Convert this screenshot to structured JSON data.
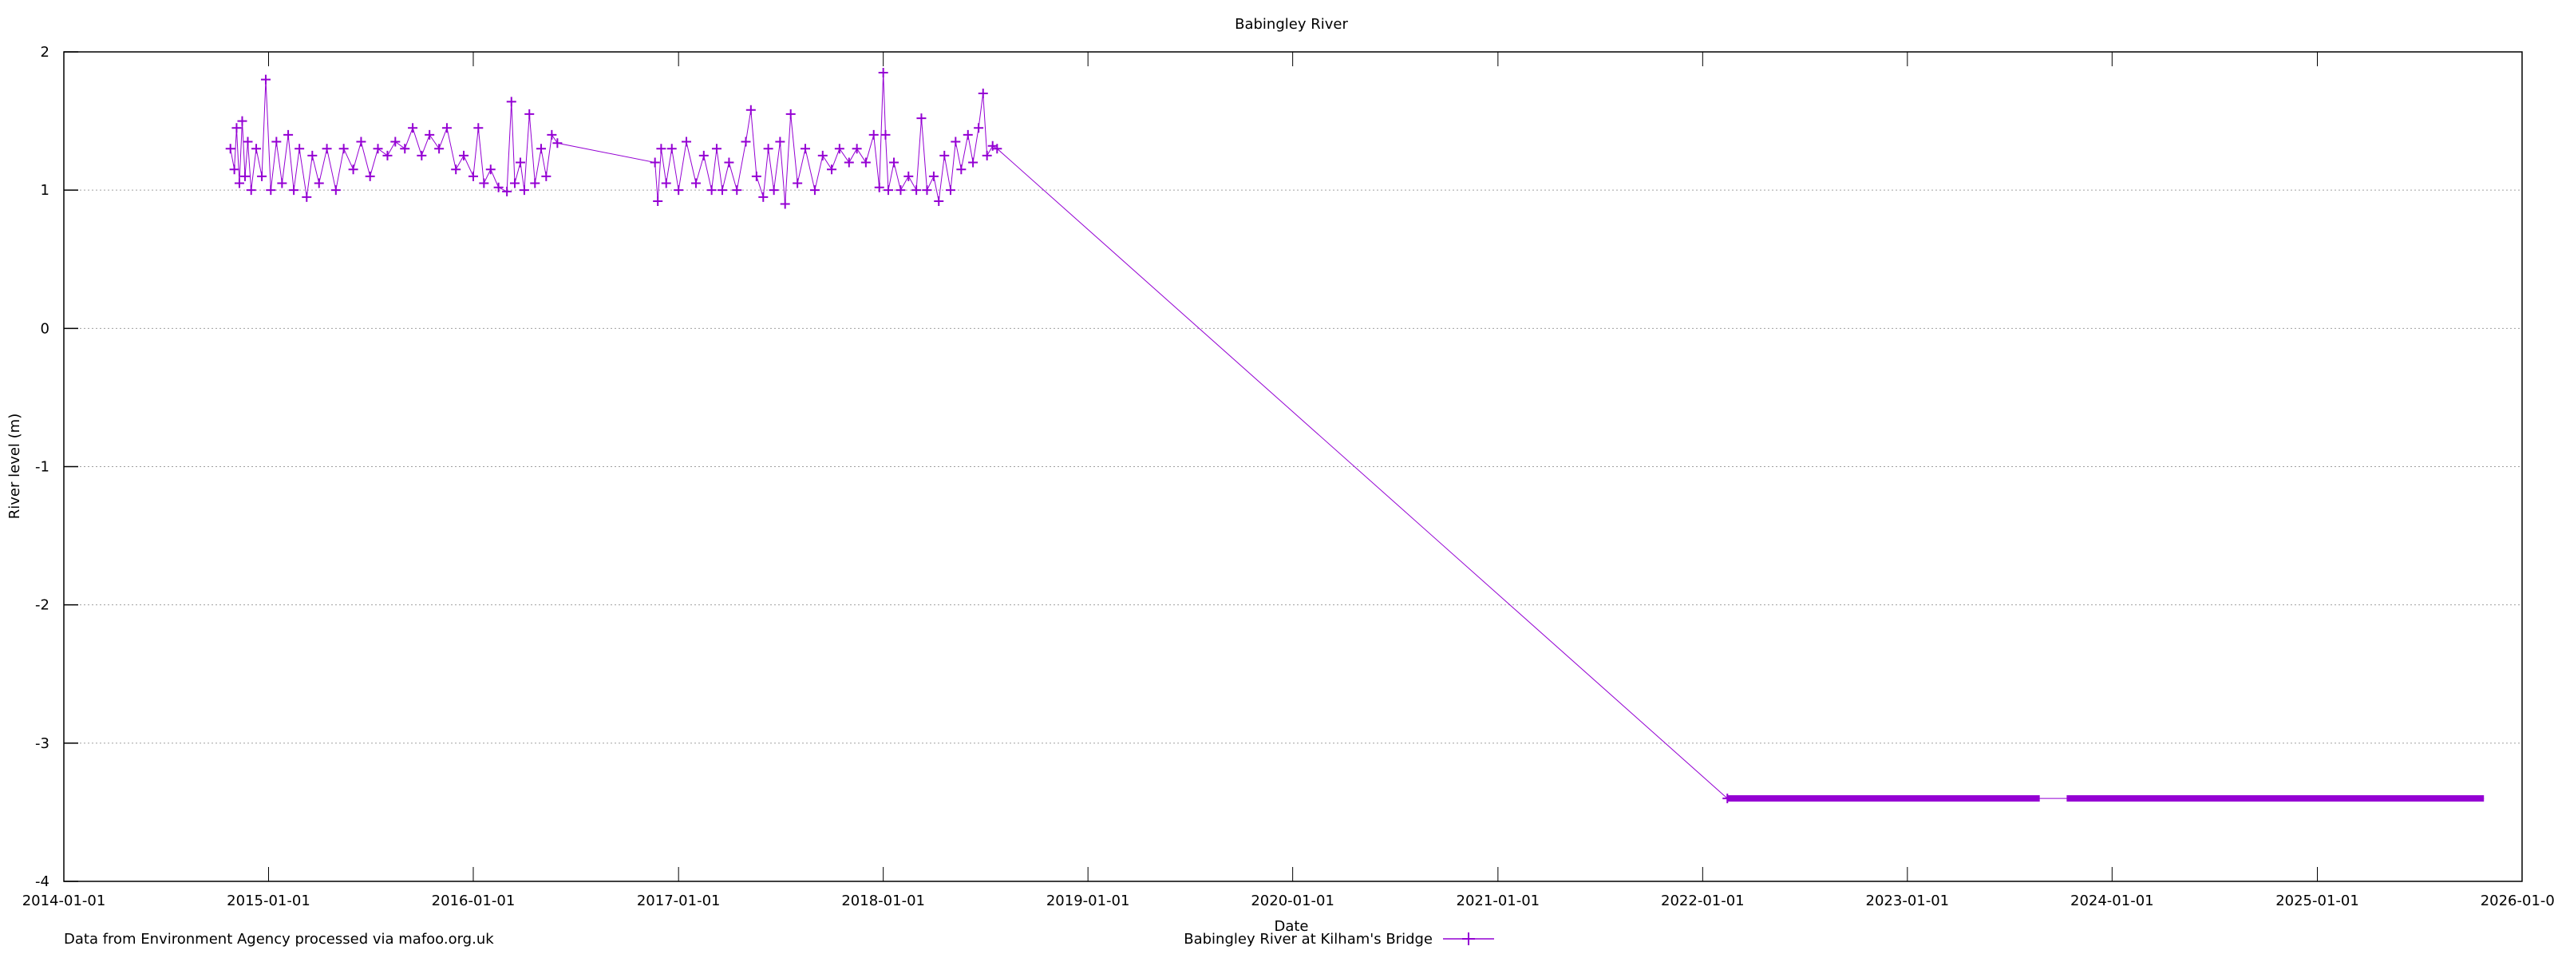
{
  "chart_data": {
    "type": "line",
    "title": "Babingley River",
    "xlabel": "Date",
    "ylabel": "River level (m)",
    "footnote": "Data from Environment Agency processed via mafoo.org.uk",
    "xlim": [
      "2014-01-01",
      "2026-01-01"
    ],
    "ylim": [
      -4,
      2
    ],
    "yticks": [
      2,
      1,
      0,
      -1,
      -2,
      -3,
      -4
    ],
    "xticks": [
      "2014-01-01",
      "2015-01-01",
      "2016-01-01",
      "2017-01-01",
      "2018-01-01",
      "2019-01-01",
      "2020-01-01",
      "2021-01-01",
      "2022-01-01",
      "2023-01-01",
      "2024-01-01",
      "2025-01-01",
      "2026-01-01"
    ],
    "grid": {
      "horizontal": true,
      "vertical": false,
      "style": "dotted"
    },
    "legend_placement": "bottom-center",
    "series": [
      {
        "name": "Babingley River at Kilham's Bridge",
        "color": "#9400d3",
        "marker": "plus",
        "points": [
          [
            "2014-10-25",
            1.3
          ],
          [
            "2014-11-01",
            1.15
          ],
          [
            "2014-11-05",
            1.45
          ],
          [
            "2014-11-10",
            1.05
          ],
          [
            "2014-11-15",
            1.5
          ],
          [
            "2014-11-20",
            1.1
          ],
          [
            "2014-11-25",
            1.35
          ],
          [
            "2014-12-01",
            1.0
          ],
          [
            "2014-12-10",
            1.3
          ],
          [
            "2014-12-20",
            1.1
          ],
          [
            "2014-12-27",
            1.8
          ],
          [
            "2015-01-05",
            1.0
          ],
          [
            "2015-01-15",
            1.35
          ],
          [
            "2015-01-25",
            1.05
          ],
          [
            "2015-02-05",
            1.4
          ],
          [
            "2015-02-15",
            1.0
          ],
          [
            "2015-02-25",
            1.3
          ],
          [
            "2015-03-10",
            0.95
          ],
          [
            "2015-03-20",
            1.25
          ],
          [
            "2015-04-01",
            1.05
          ],
          [
            "2015-04-15",
            1.3
          ],
          [
            "2015-05-01",
            1.0
          ],
          [
            "2015-05-15",
            1.3
          ],
          [
            "2015-06-01",
            1.15
          ],
          [
            "2015-06-15",
            1.35
          ],
          [
            "2015-07-01",
            1.1
          ],
          [
            "2015-07-15",
            1.3
          ],
          [
            "2015-08-01",
            1.25
          ],
          [
            "2015-08-15",
            1.35
          ],
          [
            "2015-09-01",
            1.3
          ],
          [
            "2015-09-15",
            1.45
          ],
          [
            "2015-10-01",
            1.25
          ],
          [
            "2015-10-15",
            1.4
          ],
          [
            "2015-11-01",
            1.3
          ],
          [
            "2015-11-15",
            1.45
          ],
          [
            "2015-12-01",
            1.15
          ],
          [
            "2015-12-15",
            1.25
          ],
          [
            "2016-01-01",
            1.1
          ],
          [
            "2016-01-10",
            1.45
          ],
          [
            "2016-01-20",
            1.05
          ],
          [
            "2016-02-01",
            1.15
          ],
          [
            "2016-02-15",
            1.02
          ],
          [
            "2016-03-01",
            0.99
          ],
          [
            "2016-03-09",
            1.64
          ],
          [
            "2016-03-15",
            1.05
          ],
          [
            "2016-03-25",
            1.2
          ],
          [
            "2016-04-01",
            1.0
          ],
          [
            "2016-04-10",
            1.55
          ],
          [
            "2016-04-20",
            1.05
          ],
          [
            "2016-05-01",
            1.3
          ],
          [
            "2016-05-10",
            1.1
          ],
          [
            "2016-05-20",
            1.4
          ],
          [
            "2016-05-30",
            1.34
          ],
          [
            "2016-11-20",
            1.2
          ],
          [
            "2016-11-25",
            0.92
          ],
          [
            "2016-12-01",
            1.3
          ],
          [
            "2016-12-10",
            1.05
          ],
          [
            "2016-12-20",
            1.3
          ],
          [
            "2017-01-01",
            1.0
          ],
          [
            "2017-01-15",
            1.35
          ],
          [
            "2017-02-01",
            1.05
          ],
          [
            "2017-02-15",
            1.25
          ],
          [
            "2017-03-01",
            1.0
          ],
          [
            "2017-03-10",
            1.3
          ],
          [
            "2017-03-20",
            1.0
          ],
          [
            "2017-04-01",
            1.2
          ],
          [
            "2017-04-15",
            1.0
          ],
          [
            "2017-05-01",
            1.35
          ],
          [
            "2017-05-10",
            1.58
          ],
          [
            "2017-05-20",
            1.1
          ],
          [
            "2017-06-01",
            0.95
          ],
          [
            "2017-06-10",
            1.3
          ],
          [
            "2017-06-20",
            1.0
          ],
          [
            "2017-07-01",
            1.35
          ],
          [
            "2017-07-10",
            0.9
          ],
          [
            "2017-07-20",
            1.55
          ],
          [
            "2017-08-01",
            1.05
          ],
          [
            "2017-08-15",
            1.3
          ],
          [
            "2017-09-01",
            1.0
          ],
          [
            "2017-09-15",
            1.25
          ],
          [
            "2017-10-01",
            1.15
          ],
          [
            "2017-10-15",
            1.3
          ],
          [
            "2017-11-01",
            1.2
          ],
          [
            "2017-11-15",
            1.3
          ],
          [
            "2017-12-01",
            1.2
          ],
          [
            "2017-12-15",
            1.4
          ],
          [
            "2017-12-25",
            1.02
          ],
          [
            "2018-01-01",
            1.85
          ],
          [
            "2018-01-05",
            1.4
          ],
          [
            "2018-01-10",
            1.0
          ],
          [
            "2018-01-20",
            1.2
          ],
          [
            "2018-02-01",
            1.0
          ],
          [
            "2018-02-15",
            1.1
          ],
          [
            "2018-03-01",
            1.0
          ],
          [
            "2018-03-10",
            1.52
          ],
          [
            "2018-03-20",
            1.0
          ],
          [
            "2018-04-01",
            1.1
          ],
          [
            "2018-04-10",
            0.92
          ],
          [
            "2018-04-20",
            1.25
          ],
          [
            "2018-05-01",
            1.0
          ],
          [
            "2018-05-10",
            1.35
          ],
          [
            "2018-05-20",
            1.15
          ],
          [
            "2018-06-01",
            1.4
          ],
          [
            "2018-06-10",
            1.2
          ],
          [
            "2018-06-20",
            1.45
          ],
          [
            "2018-06-28",
            1.7
          ],
          [
            "2018-07-05",
            1.25
          ],
          [
            "2018-07-15",
            1.32
          ],
          [
            "2018-07-23",
            1.3
          ],
          [
            "2022-02-14",
            -3.4
          ]
        ],
        "dense_constant_runs": [
          {
            "from": "2022-02-14",
            "to": "2023-08-25",
            "value": -3.4
          },
          {
            "from": "2023-10-12",
            "to": "2025-10-25",
            "value": -3.4
          }
        ]
      }
    ]
  }
}
